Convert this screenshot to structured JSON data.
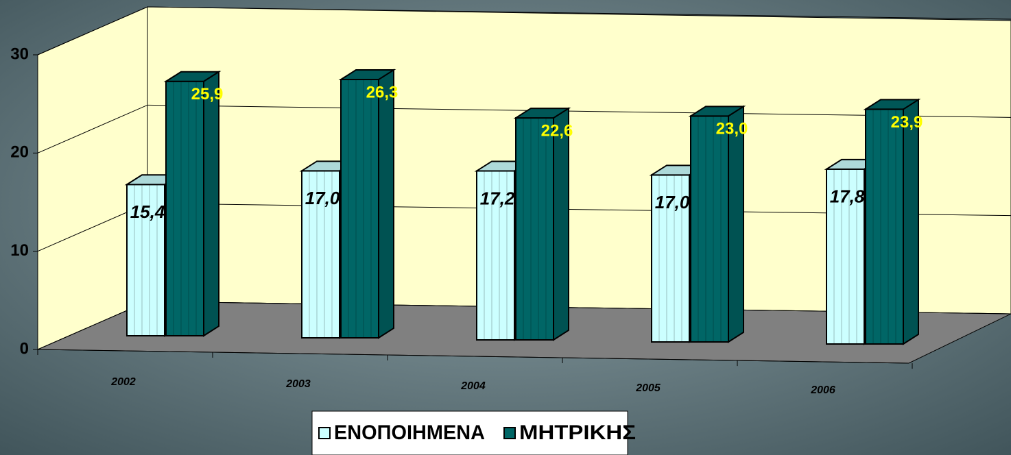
{
  "chart_data": {
    "type": "bar",
    "categories": [
      "2002",
      "2003",
      "2004",
      "2005",
      "2006"
    ],
    "series": [
      {
        "name": "ΕΝΟΠΟΙΗΜΕΝΑ",
        "color": "#ccffff",
        "values": [
          15.4,
          17.0,
          17.2,
          17.0,
          17.8
        ],
        "value_labels": [
          "15,4",
          "17,0",
          "17,2",
          "17,0",
          "17,8"
        ]
      },
      {
        "name": "ΜΗΤΡΙΚΗΣ",
        "color": "#006666",
        "values": [
          25.9,
          26.3,
          22.6,
          23.0,
          23.9
        ],
        "value_labels": [
          "25,9",
          "26,3",
          "22,6",
          "23,0",
          "23,9"
        ]
      }
    ],
    "ylim": [
      0,
      30
    ],
    "yticks": [
      0,
      10,
      20,
      30
    ],
    "grid": true
  }
}
